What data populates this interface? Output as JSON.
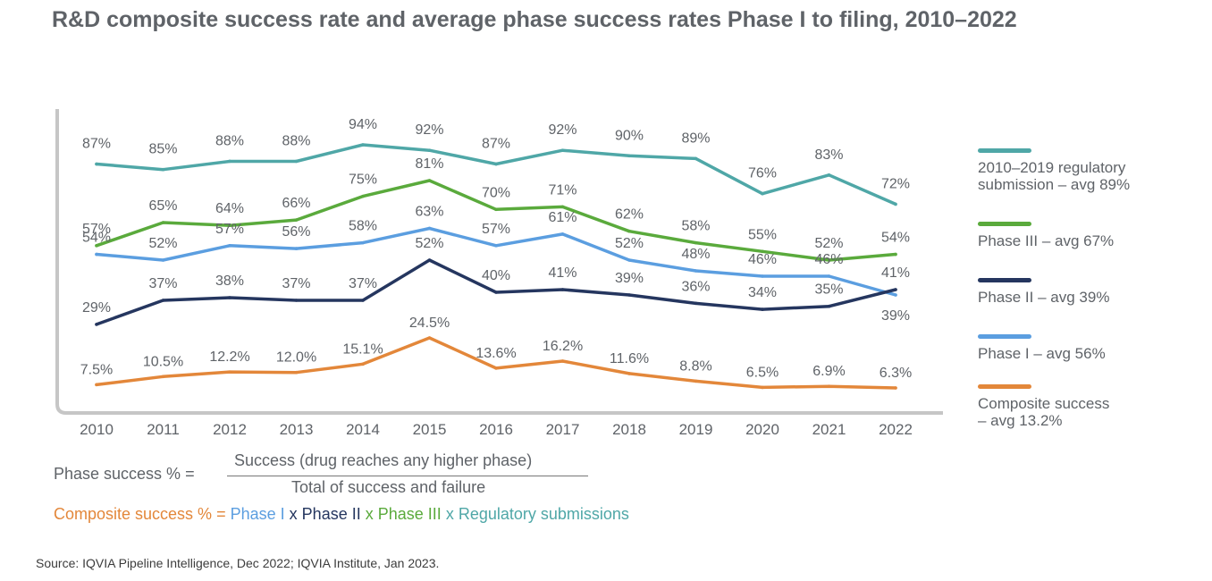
{
  "title": "R&D composite success rate and average phase success rates Phase I to filing, 2010–2022",
  "colors": {
    "regulatory": "#4fa7a7",
    "phase3": "#5aaa3c",
    "phase2": "#25365f",
    "phase1": "#5b9ee0",
    "composite": "#e3873a",
    "axis": "#c6c6c6",
    "text": "#5f6368"
  },
  "chart_data": {
    "type": "line",
    "x": [
      "2010",
      "2011",
      "2012",
      "2013",
      "2014",
      "2015",
      "2016",
      "2017",
      "2018",
      "2019",
      "2020",
      "2021",
      "2022"
    ],
    "series": [
      {
        "key": "regulatory",
        "name": "2010–2019 regulatory submission – avg 89%",
        "values": [
          87,
          85,
          88,
          88,
          94,
          92,
          87,
          92,
          90,
          89,
          76,
          83,
          72
        ],
        "labels": [
          "87%",
          "85%",
          "88%",
          "88%",
          "94%",
          "92%",
          "87%",
          "92%",
          "90%",
          "89%",
          "76%",
          "83%",
          "72%"
        ]
      },
      {
        "key": "phase3",
        "name": "Phase III – avg 67%",
        "values": [
          57,
          65,
          64,
          66,
          75,
          81,
          70,
          71,
          62,
          58,
          55,
          52,
          54
        ],
        "labels": [
          "57%",
          "65%",
          "64%",
          "66%",
          "75%",
          "81%",
          "70%",
          "71%",
          "62%",
          "58%",
          "55%",
          "52%",
          "54%"
        ]
      },
      {
        "key": "phase1",
        "name": "Phase I – avg 56%",
        "values": [
          54,
          52,
          57,
          56,
          58,
          63,
          57,
          61,
          52,
          48,
          46,
          46,
          39
        ],
        "labels": [
          "54%",
          "52%",
          "57%",
          "56%",
          "58%",
          "63%",
          "57%",
          "61%",
          "52%",
          "48%",
          "46%",
          "46%",
          "39%"
        ]
      },
      {
        "key": "phase2",
        "name": "Phase II – avg 39%",
        "values": [
          29,
          37,
          38,
          37,
          37,
          52,
          40,
          41,
          39,
          36,
          34,
          35,
          41
        ],
        "labels": [
          "29%",
          "37%",
          "38%",
          "37%",
          "37%",
          "52%",
          "40%",
          "41%",
          "39%",
          "36%",
          "34%",
          "35%",
          "41%"
        ]
      },
      {
        "key": "composite",
        "name": "Composite success – avg 13.2%",
        "values": [
          7.5,
          10.5,
          12.2,
          12.0,
          15.1,
          24.5,
          13.6,
          16.2,
          11.6,
          8.8,
          6.5,
          6.9,
          6.3
        ],
        "labels": [
          "7.5%",
          "10.5%",
          "12.2%",
          "12.0%",
          "15.1%",
          "24.5%",
          "13.6%",
          "16.2%",
          "11.6%",
          "8.8%",
          "6.5%",
          "6.9%",
          "6.3%"
        ]
      }
    ],
    "title": "R&D composite success rate and average phase success rates Phase I to filing, 2010–2022",
    "xlabel": "",
    "ylabel": "",
    "grid": false,
    "legend": "right"
  },
  "legend": {
    "regulatory": "2010–2019 regulatory\nsubmission – avg 89%",
    "phase3": "Phase III – avg 67%",
    "phase2": "Phase II – avg 39%",
    "phase1": "Phase I – avg 56%",
    "composite": "Composite success\n– avg 13.2%"
  },
  "formula": {
    "lhs": "Phase success % =",
    "numerator": "Success (drug reaches any higher phase)",
    "denominator": "Total of success and failure"
  },
  "composite_formula": {
    "lhs": "Composite success % =",
    "p1": "Phase I",
    "x1": "x",
    "p2": "Phase II",
    "x2": "x",
    "p3": "Phase III",
    "x3": "x",
    "reg": "Regulatory submissions"
  },
  "source": "Source: IQVIA Pipeline Intelligence, Dec 2022; IQVIA Institute, Jan 2023."
}
